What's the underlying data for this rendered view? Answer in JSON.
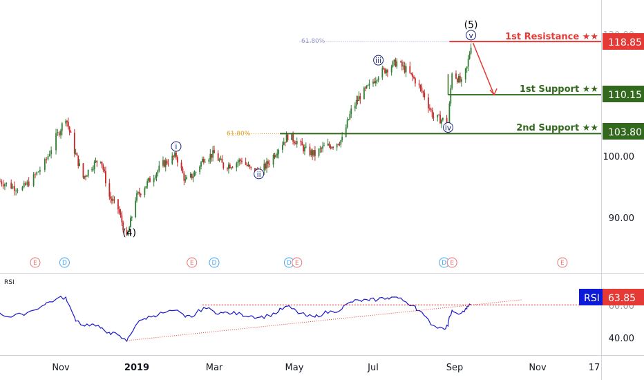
{
  "colors": {
    "up": "#26a69a",
    "down": "#ef5350",
    "dark_up": "#2e7d32",
    "resistance": "#e53935",
    "support": "#33691e",
    "rsi_line": "#1a18c9",
    "rsi_box": "#0d1bd6",
    "wave": "#1a237e",
    "event_e": "#e57373",
    "event_d": "#42a5f5"
  },
  "price_axis": {
    "ticks": [
      "90.00",
      "100.00",
      "110.00",
      "120.00"
    ],
    "ylim": [
      80,
      125
    ]
  },
  "time_axis": {
    "labels": [
      "Nov",
      "2019",
      "Mar",
      "May",
      "Jul",
      "Sep",
      "Nov",
      "17"
    ]
  },
  "levels": {
    "resistance": {
      "name": "1st Resistance ★★",
      "value": "118.85"
    },
    "support1": {
      "name": "1st Support ★★",
      "value": "110.15"
    },
    "support2": {
      "name": "2nd Support ★★",
      "value": "103.80"
    }
  },
  "fib": [
    {
      "label": "61.80%",
      "value": 118.85
    },
    {
      "label": "61.80%",
      "value": 103.8
    }
  ],
  "waves": [
    {
      "label": "(4)",
      "x": "2018-12-26",
      "y": 87.5
    },
    {
      "label": "i",
      "x": "2019-01-31",
      "y": 101.7
    },
    {
      "label": "ii",
      "x": "2019-04-04",
      "y": 97.2
    },
    {
      "label": "iii",
      "x": "2019-07-05",
      "y": 115.8
    },
    {
      "label": "iv",
      "x": "2019-08-27",
      "y": 104.8
    },
    {
      "label": "v",
      "x": "2019-09-13",
      "y": 119.9
    },
    {
      "label": "(5)",
      "x": "2019-09-13",
      "y": 121.5
    }
  ],
  "events": [
    {
      "type": "E",
      "date": "2018-10-16"
    },
    {
      "type": "D",
      "date": "2018-11-04"
    },
    {
      "type": "E",
      "date": "2019-02-12"
    },
    {
      "type": "D",
      "date": "2019-03-01"
    },
    {
      "type": "D",
      "date": "2019-04-27"
    },
    {
      "type": "E",
      "date": "2019-05-03"
    },
    {
      "type": "D",
      "date": "2019-08-24"
    },
    {
      "type": "E",
      "date": "2019-08-30"
    },
    {
      "type": "E",
      "date": "2019-11-08"
    }
  ],
  "rsi_panel": {
    "title": "RSI",
    "name": "RSI",
    "value": "63.85",
    "ticks": [
      "40.00",
      "60.00"
    ]
  },
  "chart_data": {
    "type": "candlestick",
    "x_range": [
      "2018-09-24",
      "2019-12-10"
    ],
    "price": {
      "points": [
        [
          "2018-09-24",
          96.0
        ],
        [
          "2018-10-01",
          95.2
        ],
        [
          "2018-10-08",
          94.8
        ],
        [
          "2018-10-15",
          96.6
        ],
        [
          "2018-10-22",
          99.0
        ],
        [
          "2018-10-29",
          103.2
        ],
        [
          "2018-11-05",
          106.6
        ],
        [
          "2018-11-12",
          101.0
        ],
        [
          "2018-11-19",
          96.6
        ],
        [
          "2018-11-26",
          98.5
        ],
        [
          "2018-12-03",
          99.8
        ],
        [
          "2018-12-10",
          93.5
        ],
        [
          "2018-12-17",
          91.5
        ],
        [
          "2018-12-24",
          86.5
        ],
        [
          "2018-12-31",
          93.2
        ],
        [
          "2019-01-07",
          95.2
        ],
        [
          "2019-01-14",
          97.0
        ],
        [
          "2019-01-21",
          98.8
        ],
        [
          "2019-01-31",
          100.2
        ],
        [
          "2019-02-07",
          96.0
        ],
        [
          "2019-02-14",
          97.2
        ],
        [
          "2019-02-21",
          99.8
        ],
        [
          "2019-03-01",
          100.5
        ],
        [
          "2019-03-08",
          98.5
        ],
        [
          "2019-03-15",
          98.8
        ],
        [
          "2019-03-22",
          99.5
        ],
        [
          "2019-03-29",
          97.8
        ],
        [
          "2019-04-05",
          97.5
        ],
        [
          "2019-04-12",
          99.2
        ],
        [
          "2019-04-19",
          101.5
        ],
        [
          "2019-04-26",
          103.4
        ],
        [
          "2019-05-03",
          102.5
        ],
        [
          "2019-05-10",
          101.0
        ],
        [
          "2019-05-17",
          100.4
        ],
        [
          "2019-05-24",
          101.6
        ],
        [
          "2019-05-31",
          102.0
        ],
        [
          "2019-06-07",
          102.8
        ],
        [
          "2019-06-14",
          107.5
        ],
        [
          "2019-06-21",
          110.0
        ],
        [
          "2019-06-28",
          111.5
        ],
        [
          "2019-07-05",
          113.5
        ],
        [
          "2019-07-12",
          114.5
        ],
        [
          "2019-07-19",
          115.5
        ],
        [
          "2019-07-26",
          114.2
        ],
        [
          "2019-08-02",
          112.5
        ],
        [
          "2019-08-09",
          110.0
        ],
        [
          "2019-08-16",
          106.5
        ],
        [
          "2019-08-23",
          106.0
        ],
        [
          "2019-08-27",
          105.5
        ],
        [
          "2019-08-30",
          114.0
        ],
        [
          "2019-09-06",
          112.0
        ],
        [
          "2019-09-10",
          114.5
        ],
        [
          "2019-09-13",
          118.4
        ]
      ],
      "projection": [
        [
          "2019-09-13",
          118.85
        ],
        [
          "2019-09-30",
          110.15
        ]
      ]
    },
    "rsi": {
      "ylim": [
        35,
        72
      ],
      "points": [
        [
          "2018-09-24",
          58
        ],
        [
          "2018-10-01",
          55
        ],
        [
          "2018-10-08",
          57
        ],
        [
          "2018-10-15",
          60
        ],
        [
          "2018-10-22",
          64
        ],
        [
          "2018-10-29",
          68
        ],
        [
          "2018-11-05",
          69.5
        ],
        [
          "2018-11-12",
          55
        ],
        [
          "2018-11-19",
          49
        ],
        [
          "2018-11-26",
          50
        ],
        [
          "2018-12-03",
          47
        ],
        [
          "2018-12-10",
          44
        ],
        [
          "2018-12-17",
          42
        ],
        [
          "2018-12-24",
          37.5
        ],
        [
          "2018-12-31",
          49
        ],
        [
          "2019-01-07",
          54
        ],
        [
          "2019-01-14",
          56
        ],
        [
          "2019-01-21",
          58
        ],
        [
          "2019-01-31",
          60
        ],
        [
          "2019-02-07",
          55
        ],
        [
          "2019-02-14",
          56
        ],
        [
          "2019-02-21",
          62
        ],
        [
          "2019-03-01",
          59
        ],
        [
          "2019-03-08",
          58
        ],
        [
          "2019-03-15",
          58
        ],
        [
          "2019-03-22",
          57
        ],
        [
          "2019-03-29",
          56
        ],
        [
          "2019-04-05",
          55
        ],
        [
          "2019-04-12",
          56
        ],
        [
          "2019-04-19",
          59
        ],
        [
          "2019-04-26",
          63
        ],
        [
          "2019-05-03",
          59
        ],
        [
          "2019-05-10",
          56
        ],
        [
          "2019-05-17",
          55
        ],
        [
          "2019-05-24",
          58
        ],
        [
          "2019-05-31",
          59
        ],
        [
          "2019-06-07",
          61
        ],
        [
          "2019-06-14",
          66
        ],
        [
          "2019-06-21",
          67
        ],
        [
          "2019-06-28",
          67
        ],
        [
          "2019-07-05",
          68
        ],
        [
          "2019-07-12",
          69
        ],
        [
          "2019-07-19",
          69.5
        ],
        [
          "2019-07-26",
          66
        ],
        [
          "2019-08-02",
          63
        ],
        [
          "2019-08-09",
          56
        ],
        [
          "2019-08-16",
          49
        ],
        [
          "2019-08-23",
          47
        ],
        [
          "2019-08-27",
          48.5
        ],
        [
          "2019-08-30",
          60
        ],
        [
          "2019-09-06",
          58
        ],
        [
          "2019-09-10",
          61
        ],
        [
          "2019-09-13",
          63.85
        ]
      ],
      "horizontal_level": 63.85,
      "trendline": [
        [
          "2018-12-24",
          38.0
        ],
        [
          "2019-10-20",
          67.5
        ]
      ]
    }
  }
}
